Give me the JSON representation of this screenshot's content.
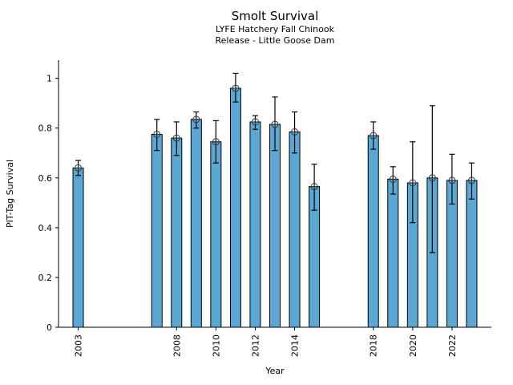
{
  "chart_data": {
    "type": "bar",
    "title": "Smolt Survival",
    "subtitle_line1": "LYFE Hatchery Fall Chinook",
    "subtitle_line2": "Release - Little Goose Dam",
    "xlabel": "Year",
    "ylabel": "PIT-Tag Survival",
    "xlim": [
      2002,
      2024
    ],
    "ylim": [
      0,
      1.073
    ],
    "xticks": [
      2003,
      2008,
      2010,
      2012,
      2014,
      2018,
      2020,
      2022
    ],
    "yticks": [
      0,
      0.2,
      0.4,
      0.6,
      0.8,
      1
    ],
    "ytick_labels": [
      "0",
      "0.2",
      "0.4",
      "0.6",
      "0.8",
      "1"
    ],
    "x_tick_rotation_deg": 90,
    "grid": false,
    "legend": null,
    "bar_color": "#5BA8D5",
    "bar_edge_color": "#000000",
    "error_bar_color": "#000000",
    "marker_style": "circled-plus",
    "marker_color": "#333333",
    "series": [
      {
        "name": "PIT-Tag Survival",
        "x": [
          2003,
          2007,
          2008,
          2009,
          2010,
          2011,
          2012,
          2013,
          2014,
          2015,
          2018,
          2019,
          2020,
          2021,
          2022,
          2023
        ],
        "y": [
          0.64,
          0.775,
          0.76,
          0.835,
          0.745,
          0.96,
          0.825,
          0.815,
          0.785,
          0.565,
          0.77,
          0.595,
          0.58,
          0.6,
          0.59,
          0.59
        ],
        "ci_low": [
          0.61,
          0.71,
          0.69,
          0.8,
          0.66,
          0.905,
          0.795,
          0.71,
          0.7,
          0.47,
          0.715,
          0.535,
          0.42,
          0.3,
          0.495,
          0.515
        ],
        "ci_high": [
          0.67,
          0.835,
          0.825,
          0.865,
          0.83,
          1.02,
          0.85,
          0.925,
          0.865,
          0.655,
          0.825,
          0.645,
          0.745,
          0.89,
          0.695,
          0.66
        ]
      }
    ]
  }
}
